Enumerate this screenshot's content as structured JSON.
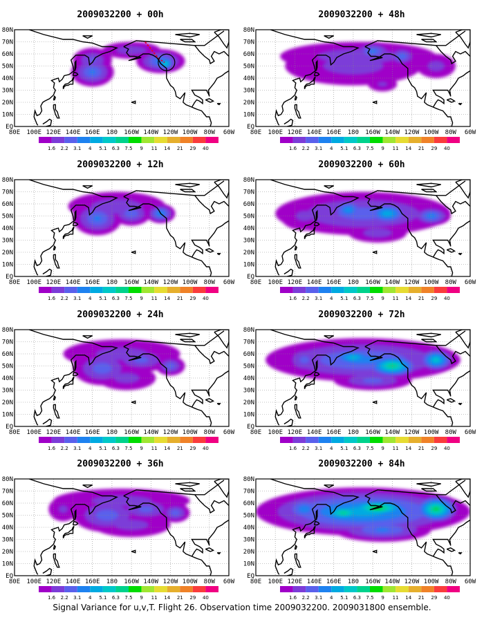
{
  "panels": [
    {
      "title": "2009032200 + 00h",
      "lead_hours": 0,
      "level_max_index": 6,
      "flight_track": true
    },
    {
      "title": "2009032200 + 48h",
      "lead_hours": 48,
      "level_max_index": 5
    },
    {
      "title": "2009032200 + 12h",
      "lead_hours": 12,
      "level_max_index": 6
    },
    {
      "title": "2009032200 + 60h",
      "lead_hours": 60,
      "level_max_index": 7
    },
    {
      "title": "2009032200 + 24h",
      "lead_hours": 24,
      "level_max_index": 5
    },
    {
      "title": "2009032200 + 72h",
      "lead_hours": 72,
      "level_max_index": 8
    },
    {
      "title": "2009032200 + 36h",
      "lead_hours": 36,
      "level_max_index": 5
    },
    {
      "title": "2009032200 + 84h",
      "lead_hours": 84,
      "level_max_index": 9
    }
  ],
  "map": {
    "lon_labels": [
      "80E",
      "100E",
      "120E",
      "140E",
      "160E",
      "180",
      "160W",
      "140W",
      "120W",
      "100W",
      "80W",
      "60W"
    ],
    "lat_labels": [
      "EQ",
      "10N",
      "20N",
      "30N",
      "40N",
      "50N",
      "60N",
      "70N",
      "80N"
    ],
    "lon_range_deg": [
      80,
      300
    ],
    "lat_range_deg": [
      0,
      80
    ],
    "gridlines": "dotted"
  },
  "colorbar": {
    "labels": [
      "1.6",
      "2.2",
      "3.1",
      "4",
      "5.1",
      "6.3",
      "7.5",
      "9",
      "11",
      "14",
      "21",
      "29",
      "40"
    ],
    "colors": [
      "#a000c8",
      "#7c3cd8",
      "#5a60ec",
      "#1e82f0",
      "#00aae1",
      "#00c8c8",
      "#00d28c",
      "#00dc00",
      "#a0e632",
      "#e6dc32",
      "#e6af2d",
      "#f08228",
      "#fa3c3c",
      "#f00082"
    ]
  },
  "caption": "Signal Variance for u,v,T. Flight 26. Observation time 2009032200. 2009031800 ensemble."
}
